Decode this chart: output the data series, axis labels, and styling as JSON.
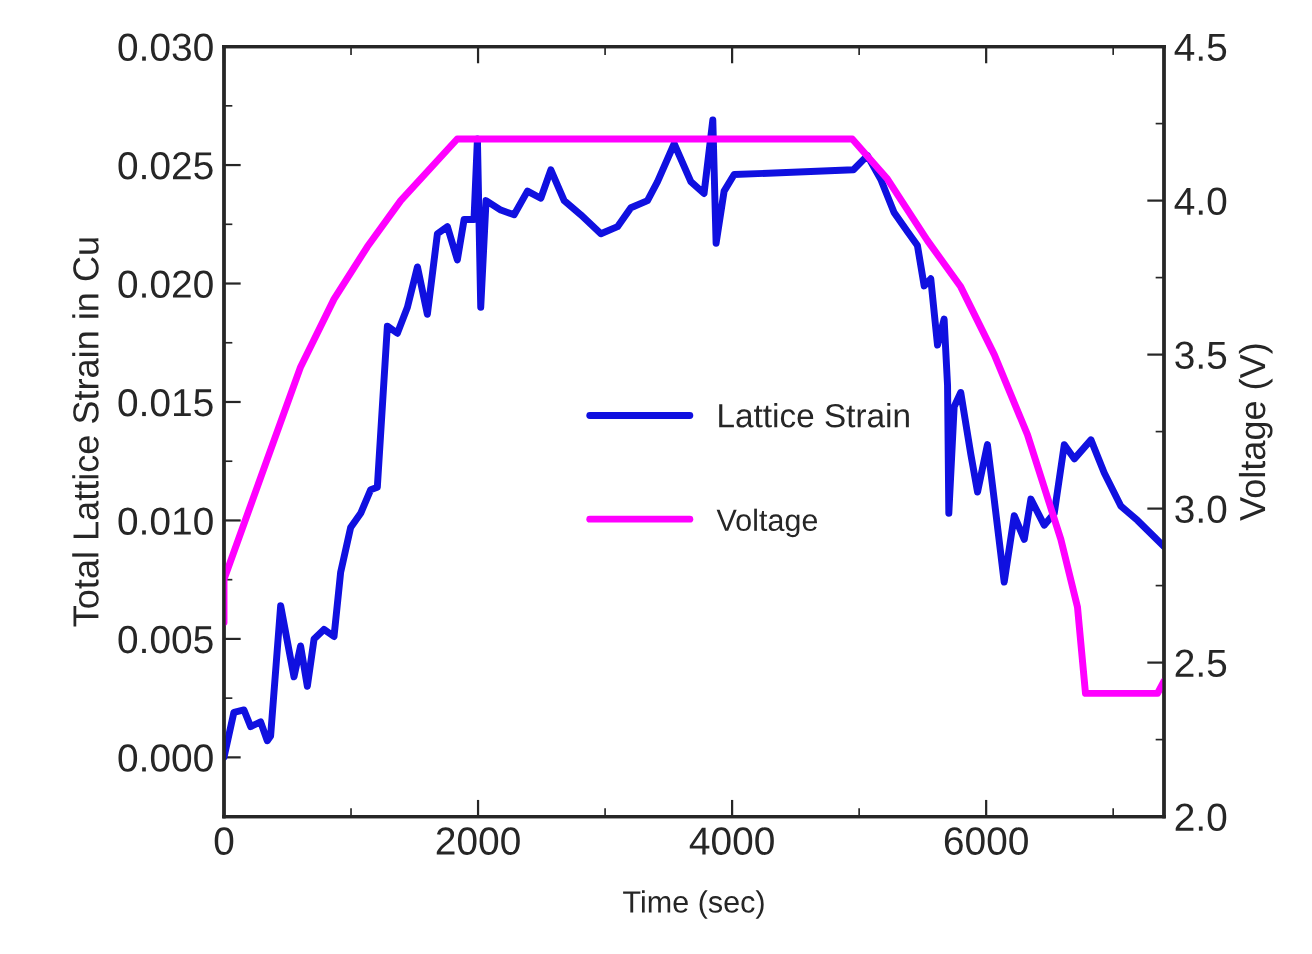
{
  "chart_data": {
    "type": "line",
    "xlabel": "Time (sec)",
    "ylabel": "Total Lattice Strain in Cu",
    "y2label": "Voltage (V)",
    "xlim": [
      0,
      7400
    ],
    "xticks": [
      0,
      2000,
      4000,
      6000
    ],
    "ylim": [
      -0.0025,
      0.03
    ],
    "yticks": [
      {
        "value": 0.0,
        "label": "0.000"
      },
      {
        "value": 0.005,
        "label": "0.005"
      },
      {
        "value": 0.01,
        "label": "0.010"
      },
      {
        "value": 0.015,
        "label": "0.015"
      },
      {
        "value": 0.02,
        "label": "0.020"
      },
      {
        "value": 0.025,
        "label": "0.025"
      },
      {
        "value": 0.03,
        "label": "0.030"
      }
    ],
    "y2lim": [
      2.0,
      4.5
    ],
    "y2ticks": [
      {
        "value": 2.0,
        "label": "2.0"
      },
      {
        "value": 2.5,
        "label": "2.5"
      },
      {
        "value": 3.0,
        "label": "3.0"
      },
      {
        "value": 3.5,
        "label": "3.5"
      },
      {
        "value": 4.0,
        "label": "4.0"
      },
      {
        "value": 4.5,
        "label": "4.5"
      }
    ],
    "grid": false,
    "legend": "center",
    "marker": "none",
    "line_style": "solid",
    "series": [
      {
        "name": "Lattice Strain",
        "color": "#1010e0",
        "x": [
          0,
          78,
          157,
          210,
          288,
          341,
          367,
          446,
          551,
          603,
          656,
          709,
          787,
          866,
          918,
          997,
          1076,
          1155,
          1207,
          1286,
          1365,
          1444,
          1523,
          1601,
          1680,
          1759,
          1837,
          1890,
          1968,
          1995,
          2021,
          2063,
          2179,
          2284,
          2389,
          2494,
          2573,
          2678,
          2809,
          2967,
          3098,
          3203,
          3334,
          3413,
          3544,
          3675,
          3779,
          3848,
          3874,
          3937,
          4016,
          4955,
          5065,
          5170,
          5275,
          5380,
          5459,
          5512,
          5564,
          5617,
          5669,
          5696,
          5706,
          5748,
          5800,
          5879,
          5932,
          6010,
          6063,
          6142,
          6221,
          6300,
          6352,
          6457,
          6536,
          6615,
          6694,
          6825,
          6930,
          7061,
          7192,
          7324,
          7400
        ],
        "values": [
          0.0,
          0.0019,
          0.002,
          0.0013,
          0.0015,
          0.0007,
          0.0009,
          0.0064,
          0.0034,
          0.0047,
          0.003,
          0.005,
          0.0054,
          0.0051,
          0.0078,
          0.0097,
          0.0103,
          0.0113,
          0.0114,
          0.0182,
          0.0179,
          0.019,
          0.0207,
          0.0187,
          0.0221,
          0.0224,
          0.021,
          0.0227,
          0.0227,
          0.0261,
          0.019,
          0.0235,
          0.0231,
          0.0229,
          0.0239,
          0.0236,
          0.0248,
          0.0235,
          0.0229,
          0.0221,
          0.0224,
          0.0232,
          0.0235,
          0.0243,
          0.0259,
          0.0243,
          0.0238,
          0.0269,
          0.0217,
          0.0239,
          0.0246,
          0.0248,
          0.0254,
          0.0244,
          0.023,
          0.0222,
          0.0216,
          0.0199,
          0.0202,
          0.0174,
          0.0185,
          0.0157,
          0.0103,
          0.0148,
          0.0154,
          0.0128,
          0.0112,
          0.0132,
          0.0109,
          0.0074,
          0.0102,
          0.0092,
          0.0109,
          0.0098,
          0.0103,
          0.0132,
          0.0126,
          0.0134,
          0.012,
          0.0106,
          0.01,
          0.0093,
          0.0089
        ]
      },
      {
        "name": "Voltage",
        "color": "#ff00ff",
        "axis": "y2",
        "x": [
          0,
          0,
          340,
          603,
          866,
          1128,
          1391,
          1836,
          4946,
          5223,
          5538,
          5800,
          6064,
          6325,
          6588,
          6719,
          6782,
          7349,
          7400
        ],
        "values": [
          2.63,
          2.77,
          3.16,
          3.46,
          3.68,
          3.85,
          4.0,
          4.2,
          4.2,
          4.07,
          3.87,
          3.72,
          3.5,
          3.24,
          2.9,
          2.68,
          2.4,
          2.4,
          2.44
        ]
      }
    ]
  }
}
